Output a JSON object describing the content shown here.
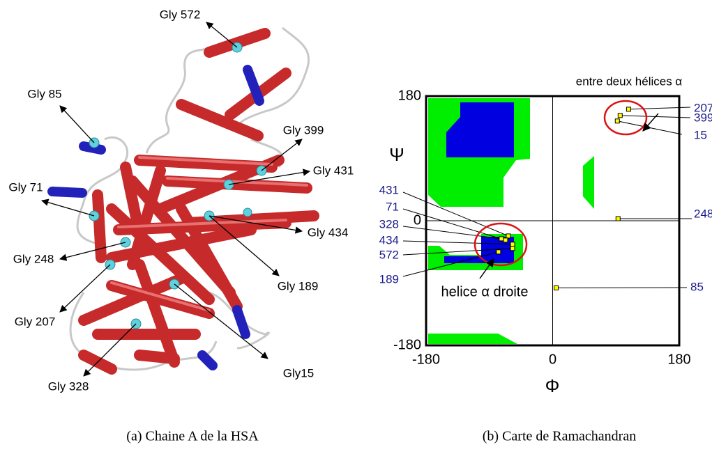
{
  "panel_a": {
    "labels": [
      "Gly 572",
      "Gly 85",
      "Gly 399",
      "Gly 431",
      "Gly 71",
      "Gly 434",
      "Gly 248",
      "Gly 189",
      "Gly 207",
      "Gly 328",
      "Gly15"
    ]
  },
  "chart_data": {
    "type": "scatter",
    "x_label": "Φ",
    "y_label": "Ψ",
    "x": [
      108,
      96,
      92,
      93,
      5,
      -63,
      -67,
      -73,
      -57,
      -57,
      -77
    ],
    "values": [
      161,
      152,
      144,
      3,
      -97,
      -22,
      -28,
      -26,
      -34,
      -40,
      -45
    ],
    "point_labels": [
      "207",
      "399",
      "15",
      "248",
      "85",
      "431",
      "71",
      "328",
      "434",
      "572",
      "189"
    ],
    "color": "#ffff00",
    "xlim": [
      -180,
      180
    ],
    "ylim": [
      -180,
      180
    ],
    "xticks": [
      -180,
      0,
      180
    ],
    "yticks": [
      -180,
      0,
      180
    ],
    "annotations": [
      "entre deux hélices α",
      "helice α droite"
    ]
  },
  "captions": [
    "(a) Chaine A de la HSA",
    "(b) Carte de Ramachandran"
  ]
}
